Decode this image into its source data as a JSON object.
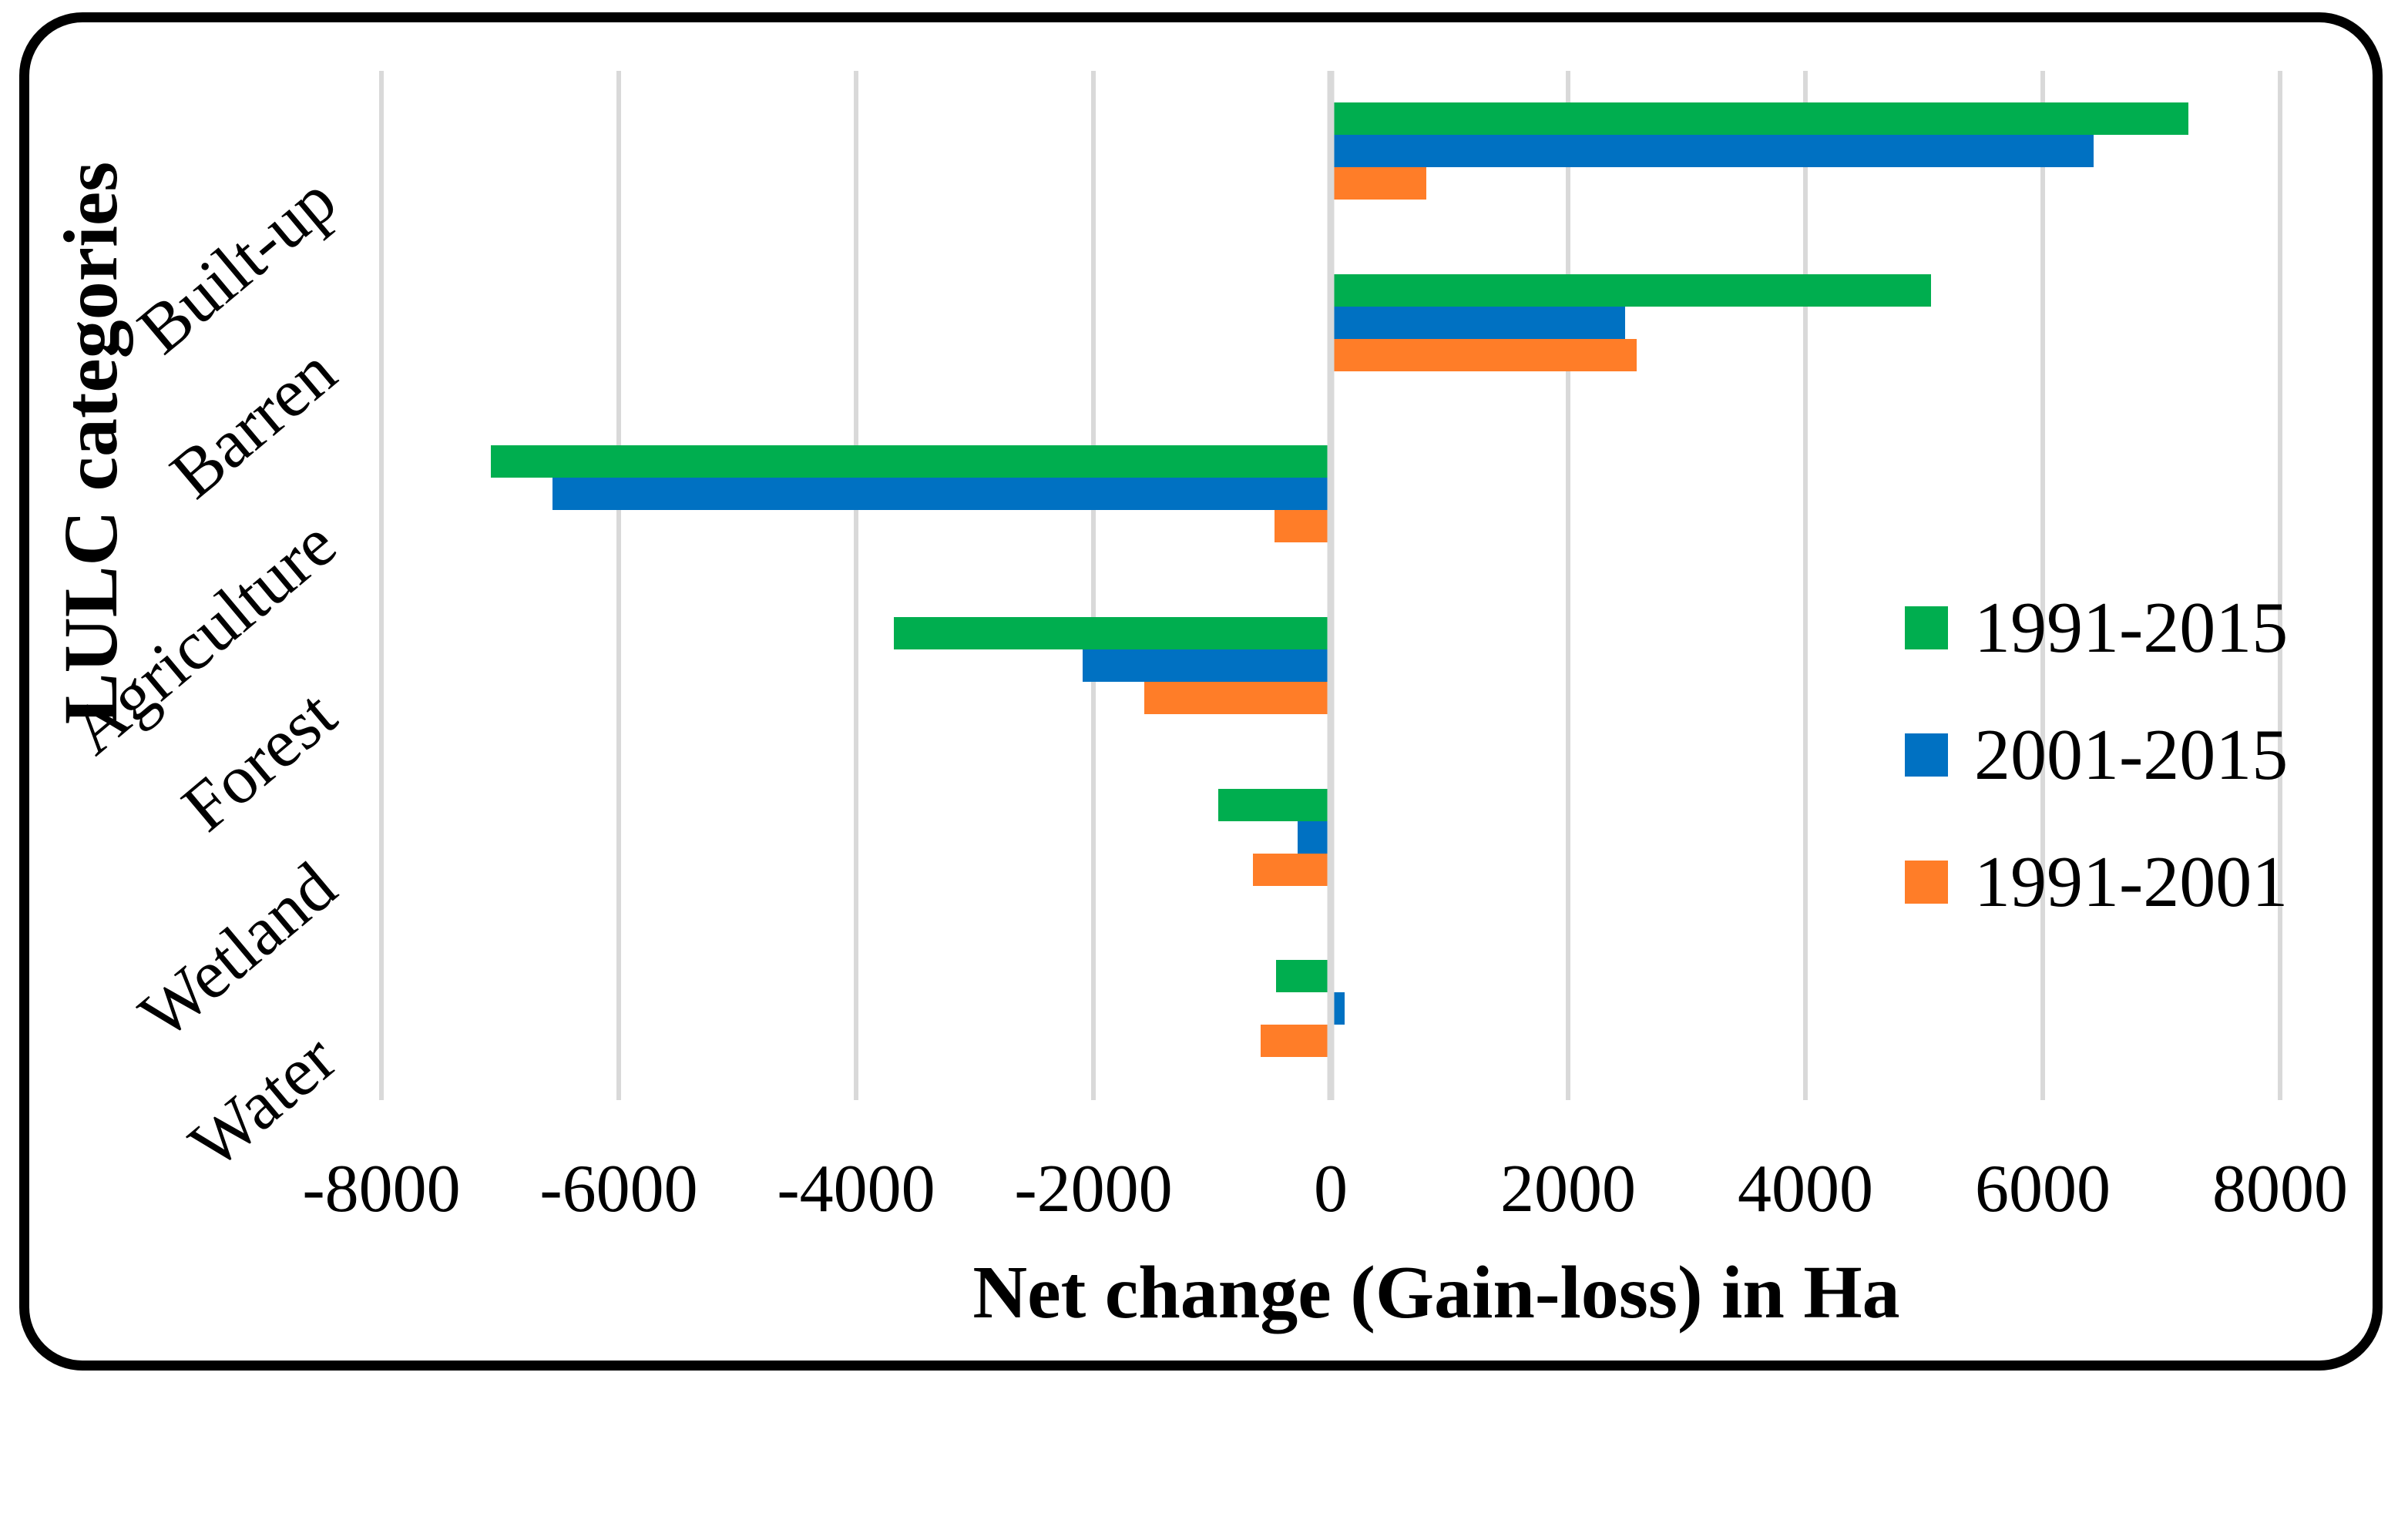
{
  "chart_data": {
    "type": "bar",
    "orientation": "horizontal",
    "xlabel": "Net change (Gain-loss) in Ha",
    "ylabel": "LULC categories",
    "categories": [
      "Built-up",
      "Barren",
      "Agriculture",
      "Forest",
      "Wetland",
      "Water"
    ],
    "series": [
      {
        "name": "1991-2015",
        "color": "#00AE4F",
        "values": [
          7230,
          5060,
          -7080,
          -3680,
          -950,
          -460
        ]
      },
      {
        "name": "2001-2015",
        "color": "#0071C2",
        "values": [
          6430,
          2480,
          -6560,
          -2090,
          -280,
          115
        ]
      },
      {
        "name": "1991-2001",
        "color": "#FF7D28",
        "values": [
          805,
          2580,
          -475,
          -1570,
          -655,
          -590
        ]
      }
    ],
    "xlim": [
      -8000,
      8000
    ],
    "x_ticks": [
      -8000,
      -6000,
      -4000,
      -2000,
      0,
      2000,
      4000,
      6000,
      8000
    ],
    "grid": true,
    "gridline_color": "#D9D9D9",
    "legend_position": "middle-right",
    "plot_background": "#FFFFFF",
    "frame_border_color": "#000000"
  }
}
